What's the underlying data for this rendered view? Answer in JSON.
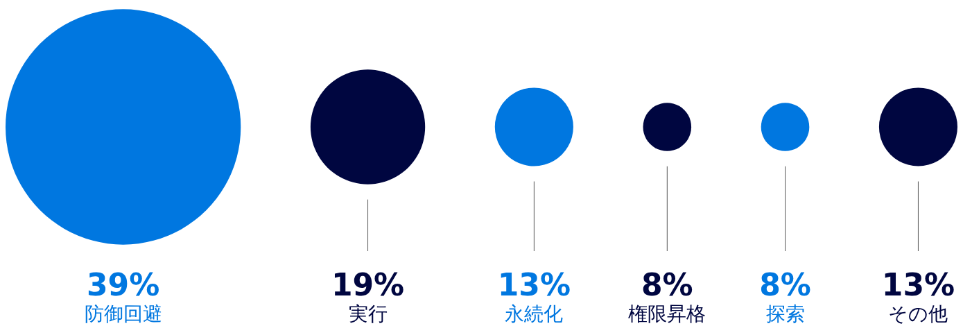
{
  "chart_data": {
    "type": "other",
    "categories": [
      "防御回避",
      "実行",
      "永続化",
      "権限昇格",
      "探索",
      "その他"
    ],
    "values": [
      39,
      19,
      13,
      8,
      8,
      13
    ],
    "value_labels": [
      "39%",
      "19%",
      "13%",
      "8%",
      "8%",
      "13%"
    ],
    "colors": [
      "#0077e0",
      "#000640",
      "#0077e0",
      "#000640",
      "#0077e0",
      "#000640"
    ]
  }
}
